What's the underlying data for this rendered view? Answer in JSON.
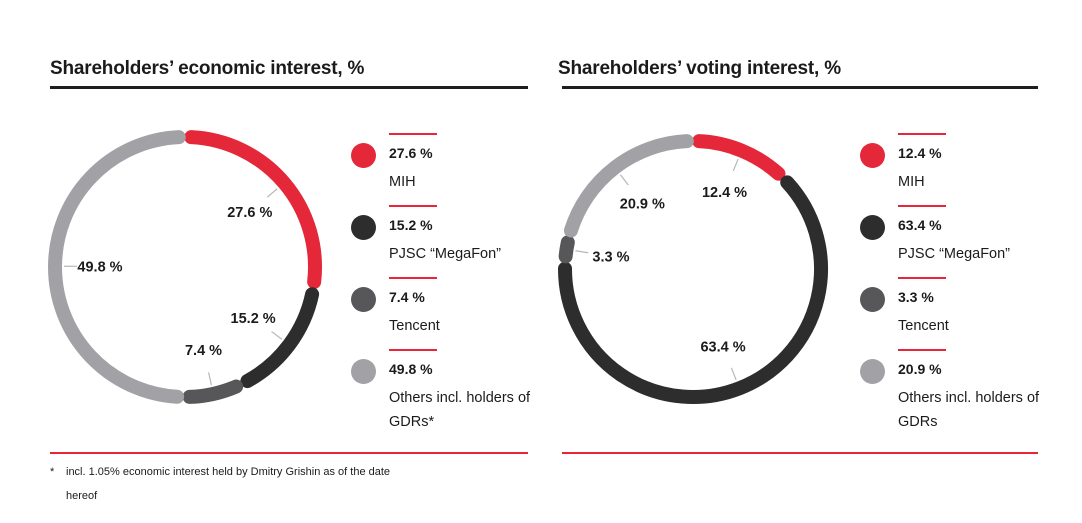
{
  "colors": {
    "red": "#e4283a",
    "dark": "#2d2d2d",
    "gray": "#57575a",
    "light": "#a2a2a6"
  },
  "chart_data": [
    {
      "type": "pie",
      "title": "Shareholders’ economic interest, %",
      "series": [
        {
          "name": "MIH",
          "value": 27.6,
          "value_label": "27.6 %",
          "color": "#e4283a"
        },
        {
          "name": "PJSC “MegaFon”",
          "value": 15.2,
          "value_label": "15.2 %",
          "color": "#2d2d2d"
        },
        {
          "name": "Tencent",
          "value": 7.4,
          "value_label": "7.4 %",
          "color": "#57575a"
        },
        {
          "name": "Others incl. holders of GDRs*",
          "value": 49.8,
          "value_label": "49.8 %",
          "color": "#a2a2a6"
        }
      ],
      "legend_position": "right"
    },
    {
      "type": "pie",
      "title": "Shareholders’ voting interest, %",
      "series": [
        {
          "name": "MIH",
          "value": 12.4,
          "value_label": "12.4 %",
          "color": "#e4283a"
        },
        {
          "name": "PJSC “MegaFon”",
          "value": 63.4,
          "value_label": "63.4 %",
          "color": "#2d2d2d"
        },
        {
          "name": "Tencent",
          "value": 3.3,
          "value_label": "3.3 %",
          "color": "#57575a"
        },
        {
          "name": "Others incl. holders of GDRs",
          "value": 20.9,
          "value_label": "20.9 %",
          "color": "#a2a2a6"
        }
      ],
      "legend_position": "right"
    }
  ],
  "footnote": {
    "marker": "*",
    "text": "incl. 1.05% economic interest held by Dmitry Grishin as of the date hereof"
  }
}
